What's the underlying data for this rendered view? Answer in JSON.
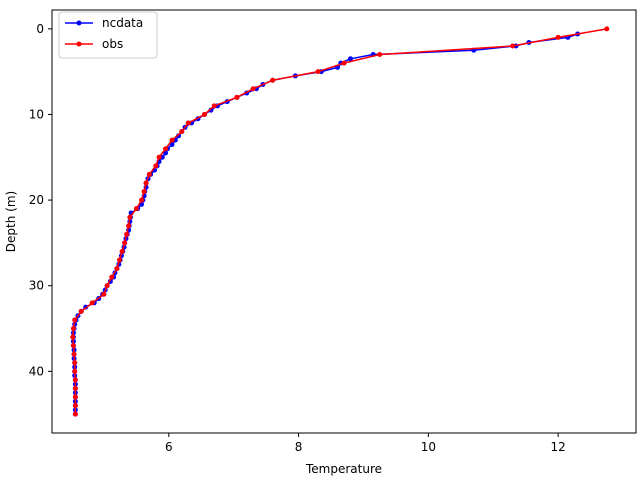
{
  "chart_data": {
    "type": "line",
    "xlabel": "Temperature",
    "ylabel": "Depth (m)",
    "xlim": [
      4.2,
      13.2
    ],
    "ylim": [
      47.2,
      -2.2
    ],
    "y_inverted": true,
    "xticks": [
      6,
      8,
      10,
      12
    ],
    "yticks": [
      0,
      10,
      20,
      30,
      40
    ],
    "grid": false,
    "legend": "top-left",
    "series": [
      {
        "name": "ncdata",
        "color": "#0000ff",
        "marker": "dot",
        "points": [
          [
            12.3,
            0.6
          ],
          [
            12.15,
            1.0
          ],
          [
            11.55,
            1.6
          ],
          [
            11.35,
            2.0
          ],
          [
            10.7,
            2.5
          ],
          [
            9.15,
            3.0
          ],
          [
            8.8,
            3.5
          ],
          [
            8.65,
            4.0
          ],
          [
            8.6,
            4.5
          ],
          [
            8.35,
            5.0
          ],
          [
            7.95,
            5.5
          ],
          [
            7.6,
            6.0
          ],
          [
            7.45,
            6.5
          ],
          [
            7.35,
            7.0
          ],
          [
            7.2,
            7.5
          ],
          [
            7.05,
            8.0
          ],
          [
            6.9,
            8.5
          ],
          [
            6.75,
            9.0
          ],
          [
            6.65,
            9.5
          ],
          [
            6.55,
            10.0
          ],
          [
            6.45,
            10.5
          ],
          [
            6.35,
            11.0
          ],
          [
            6.25,
            11.5
          ],
          [
            6.2,
            12.0
          ],
          [
            6.15,
            12.5
          ],
          [
            6.1,
            13.0
          ],
          [
            6.05,
            13.5
          ],
          [
            5.98,
            14.0
          ],
          [
            5.95,
            14.5
          ],
          [
            5.9,
            15.0
          ],
          [
            5.85,
            15.5
          ],
          [
            5.82,
            16.0
          ],
          [
            5.78,
            16.5
          ],
          [
            5.72,
            17.0
          ],
          [
            5.68,
            17.5
          ],
          [
            5.65,
            18.0
          ],
          [
            5.65,
            18.5
          ],
          [
            5.63,
            19.0
          ],
          [
            5.62,
            19.5
          ],
          [
            5.6,
            20.0
          ],
          [
            5.58,
            20.5
          ],
          [
            5.52,
            21.0
          ],
          [
            5.42,
            21.5
          ],
          [
            5.41,
            22.0
          ],
          [
            5.4,
            22.5
          ],
          [
            5.39,
            23.0
          ],
          [
            5.38,
            23.5
          ],
          [
            5.36,
            24.0
          ],
          [
            5.34,
            24.5
          ],
          [
            5.32,
            25.0
          ],
          [
            5.31,
            25.5
          ],
          [
            5.29,
            26.0
          ],
          [
            5.27,
            26.5
          ],
          [
            5.25,
            27.0
          ],
          [
            5.23,
            27.5
          ],
          [
            5.2,
            28.0
          ],
          [
            5.17,
            28.5
          ],
          [
            5.15,
            29.0
          ],
          [
            5.1,
            29.5
          ],
          [
            5.05,
            30.0
          ],
          [
            5.02,
            30.5
          ],
          [
            4.98,
            31.0
          ],
          [
            4.92,
            31.5
          ],
          [
            4.85,
            32.0
          ],
          [
            4.72,
            32.5
          ],
          [
            4.65,
            33.0
          ],
          [
            4.6,
            33.5
          ],
          [
            4.57,
            34.0
          ],
          [
            4.55,
            34.5
          ],
          [
            4.54,
            35.0
          ],
          [
            4.53,
            35.5
          ],
          [
            4.53,
            36.0
          ],
          [
            4.53,
            36.5
          ],
          [
            4.53,
            37.0
          ],
          [
            4.54,
            37.5
          ],
          [
            4.54,
            38.0
          ],
          [
            4.54,
            38.5
          ],
          [
            4.55,
            39.0
          ],
          [
            4.55,
            39.5
          ],
          [
            4.55,
            40.0
          ],
          [
            4.55,
            40.5
          ],
          [
            4.56,
            41.0
          ],
          [
            4.56,
            41.5
          ],
          [
            4.56,
            42.0
          ],
          [
            4.56,
            42.5
          ],
          [
            4.56,
            43.0
          ],
          [
            4.56,
            43.5
          ],
          [
            4.56,
            44.0
          ],
          [
            4.56,
            44.5
          ],
          [
            4.56,
            45.0
          ]
        ]
      },
      {
        "name": "obs",
        "color": "#ff0000",
        "marker": "dot",
        "points": [
          [
            12.75,
            0.0
          ],
          [
            12.0,
            1.0
          ],
          [
            11.3,
            2.0
          ],
          [
            9.25,
            3.0
          ],
          [
            8.7,
            4.0
          ],
          [
            8.3,
            5.0
          ],
          [
            7.6,
            6.0
          ],
          [
            7.3,
            7.0
          ],
          [
            7.05,
            8.0
          ],
          [
            6.7,
            9.0
          ],
          [
            6.55,
            10.0
          ],
          [
            6.3,
            11.0
          ],
          [
            6.2,
            12.0
          ],
          [
            6.05,
            13.0
          ],
          [
            5.95,
            14.0
          ],
          [
            5.85,
            15.0
          ],
          [
            5.8,
            16.0
          ],
          [
            5.7,
            17.0
          ],
          [
            5.65,
            18.0
          ],
          [
            5.62,
            19.0
          ],
          [
            5.58,
            20.0
          ],
          [
            5.5,
            21.0
          ],
          [
            5.4,
            22.0
          ],
          [
            5.38,
            23.0
          ],
          [
            5.35,
            24.0
          ],
          [
            5.32,
            25.0
          ],
          [
            5.28,
            26.0
          ],
          [
            5.24,
            27.0
          ],
          [
            5.2,
            28.0
          ],
          [
            5.12,
            29.0
          ],
          [
            5.05,
            30.0
          ],
          [
            5.0,
            31.0
          ],
          [
            4.82,
            32.0
          ],
          [
            4.65,
            33.0
          ],
          [
            4.55,
            34.0
          ],
          [
            4.53,
            35.0
          ],
          [
            4.52,
            36.0
          ],
          [
            4.53,
            37.0
          ],
          [
            4.54,
            38.0
          ],
          [
            4.55,
            39.0
          ],
          [
            4.55,
            40.0
          ],
          [
            4.56,
            41.0
          ],
          [
            4.56,
            42.0
          ],
          [
            4.56,
            43.0
          ],
          [
            4.56,
            44.0
          ],
          [
            4.56,
            45.0
          ]
        ]
      }
    ]
  }
}
